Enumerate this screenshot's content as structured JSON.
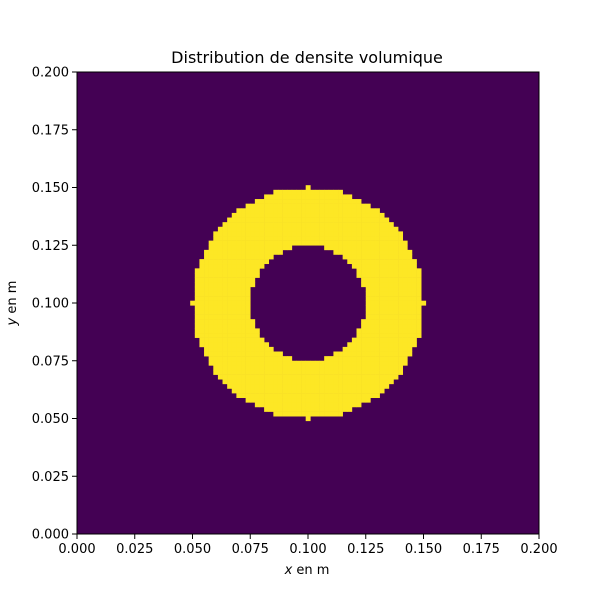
{
  "chart_data": {
    "type": "heatmap",
    "title": "Distribution de densite volumique",
    "xlabel": {
      "var": "x",
      "rest": " en m"
    },
    "ylabel": {
      "var": "y",
      "rest": " en m"
    },
    "xlim": [
      0.0,
      0.2
    ],
    "ylim": [
      0.0,
      0.2
    ],
    "xticks": [
      "0.000",
      "0.025",
      "0.050",
      "0.075",
      "0.100",
      "0.125",
      "0.150",
      "0.175",
      "0.200"
    ],
    "yticks": [
      "0.000",
      "0.025",
      "0.050",
      "0.075",
      "0.100",
      "0.125",
      "0.150",
      "0.175",
      "0.200"
    ],
    "grid": false,
    "colormap": "viridis",
    "background_color": "#440154",
    "foreground_color": "#fde725",
    "shape": {
      "kind": "annulus",
      "center": [
        0.1,
        0.1
      ],
      "inner_radius": 0.025,
      "outer_radius": 0.05
    },
    "grid_resolution": [
      100,
      100
    ]
  }
}
